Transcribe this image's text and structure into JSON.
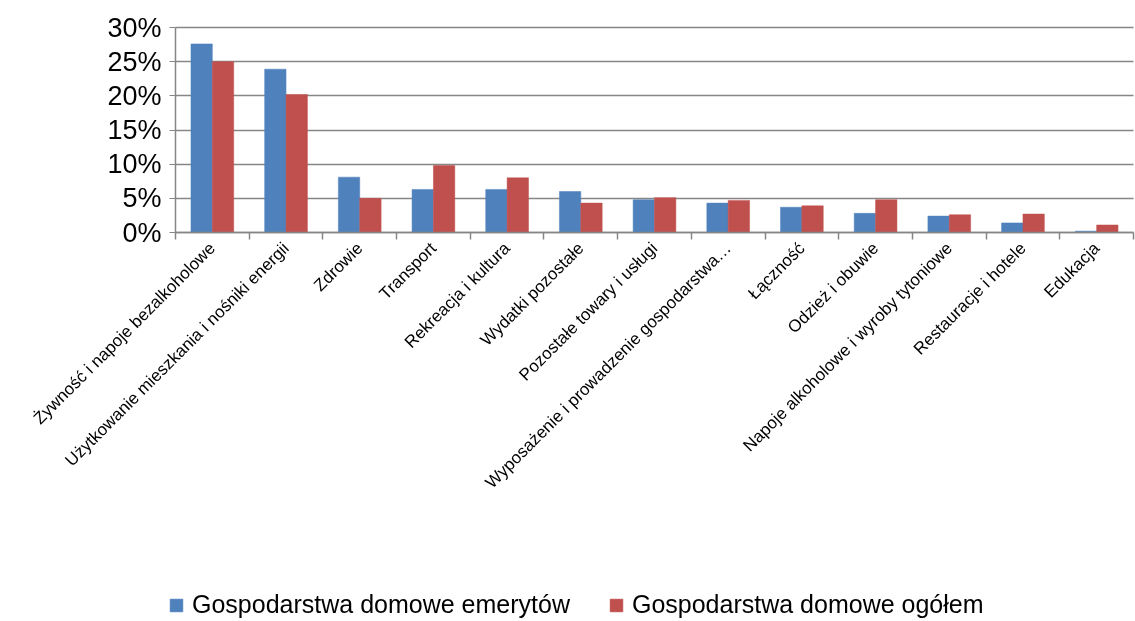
{
  "chart_data": {
    "type": "bar",
    "categories": [
      "Żywność i napoje bezalkoholowe",
      "Użytkowanie mieszkania i nośniki energii",
      "Zdrowie",
      "Transport",
      "Rekreacja i kultura",
      "Wydatki pozostałe",
      "Pozostałe towary i usługi",
      "Wyposażenie i prowadzenie gospodarstwa…",
      "Łączność",
      "Odzież i obuwie",
      "Napoje alkoholowe i wyroby tytoniowe",
      "Restauracje i hotele",
      "Edukacja"
    ],
    "series": [
      {
        "name": "Gospodarstwa domowe emerytów",
        "color": "#4f81bd",
        "values": [
          27.6,
          23.9,
          8.1,
          6.3,
          6.3,
          6.0,
          4.8,
          4.3,
          3.7,
          2.8,
          2.4,
          1.4,
          0.2
        ]
      },
      {
        "name": "Gospodarstwa domowe ogółem",
        "color": "#c0504d",
        "values": [
          25.0,
          20.2,
          5.0,
          9.8,
          8.0,
          4.3,
          5.1,
          4.7,
          3.9,
          4.8,
          2.6,
          2.7,
          1.1
        ]
      }
    ],
    "ylim": [
      0,
      30
    ],
    "yticks": [
      {
        "value": 0,
        "label": "0%"
      },
      {
        "value": 5,
        "label": "5%"
      },
      {
        "value": 10,
        "label": "10%"
      },
      {
        "value": 15,
        "label": "15%"
      },
      {
        "value": 20,
        "label": "20%"
      },
      {
        "value": 25,
        "label": "25%"
      },
      {
        "value": 30,
        "label": "30%"
      }
    ],
    "grid": "y",
    "legend": "bottom"
  }
}
